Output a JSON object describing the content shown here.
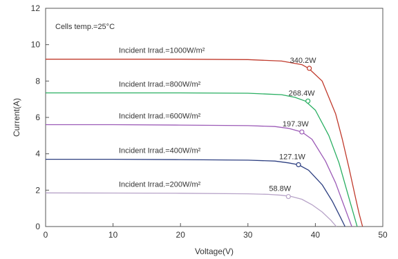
{
  "chart_data": {
    "type": "line",
    "title": "",
    "xlabel": "Voltage(V)",
    "ylabel": "Current(A)",
    "xlim": [
      0,
      50
    ],
    "ylim": [
      0,
      12
    ],
    "xticks": [
      "0",
      "10",
      "20",
      "30",
      "40",
      "50"
    ],
    "yticks": [
      "0",
      "2",
      "4",
      "6",
      "8",
      "10",
      "12"
    ],
    "grid": false,
    "legend": "none",
    "note": "Cells temp.=25°C",
    "series": [
      {
        "label": "Incident Irrad.=1000W/m²",
        "color": "#c0392b",
        "x": [
          0,
          10,
          20,
          30,
          35,
          38,
          39,
          41,
          43,
          44,
          45,
          46,
          46.5,
          47
        ],
        "y": [
          9.2,
          9.2,
          9.2,
          9.18,
          9.1,
          8.9,
          8.7,
          8.0,
          6.2,
          4.8,
          3.2,
          1.5,
          0.7,
          0
        ],
        "mpp": {
          "x": 39.1,
          "y": 8.7,
          "label": "340.2W"
        }
      },
      {
        "label": "Incident Irrad.=800W/m²",
        "color": "#27ae60",
        "x": [
          0,
          10,
          20,
          30,
          35,
          37,
          38.5,
          40,
          42,
          43.5,
          44.5,
          45.5,
          46.2
        ],
        "y": [
          7.35,
          7.35,
          7.35,
          7.33,
          7.25,
          7.1,
          6.9,
          6.4,
          5.0,
          3.5,
          2.2,
          0.9,
          0
        ],
        "mpp": {
          "x": 38.9,
          "y": 6.9,
          "label": "268.4W"
        }
      },
      {
        "label": "Incident Irrad.=600W/m²",
        "color": "#9b59b6",
        "x": [
          0,
          10,
          20,
          30,
          34,
          36,
          38,
          39.5,
          41.5,
          43,
          44,
          44.8,
          45.4
        ],
        "y": [
          5.6,
          5.6,
          5.58,
          5.55,
          5.5,
          5.4,
          5.2,
          4.8,
          3.6,
          2.4,
          1.4,
          0.6,
          0
        ],
        "mpp": {
          "x": 38,
          "y": 5.2,
          "label": "197.3W"
        }
      },
      {
        "label": "Incident Irrad.=400W/m²",
        "color": "#2c3e80",
        "x": [
          0,
          10,
          20,
          30,
          34,
          36,
          37.5,
          39,
          41,
          42.5,
          43.6,
          44.4
        ],
        "y": [
          3.7,
          3.7,
          3.68,
          3.65,
          3.6,
          3.5,
          3.4,
          3.1,
          2.3,
          1.4,
          0.6,
          0
        ],
        "mpp": {
          "x": 37.5,
          "y": 3.4,
          "label": "127.1W"
        }
      },
      {
        "label": "Incident Irrad.=200W/m²",
        "color": "#b7a3c8",
        "x": [
          0,
          10,
          20,
          30,
          33,
          35,
          36.5,
          38,
          39.5,
          41,
          42.3,
          43.1
        ],
        "y": [
          1.85,
          1.84,
          1.83,
          1.8,
          1.77,
          1.72,
          1.65,
          1.5,
          1.2,
          0.8,
          0.35,
          0
        ],
        "mpp": {
          "x": 36,
          "y": 1.65,
          "label": "58.8W"
        }
      }
    ]
  }
}
